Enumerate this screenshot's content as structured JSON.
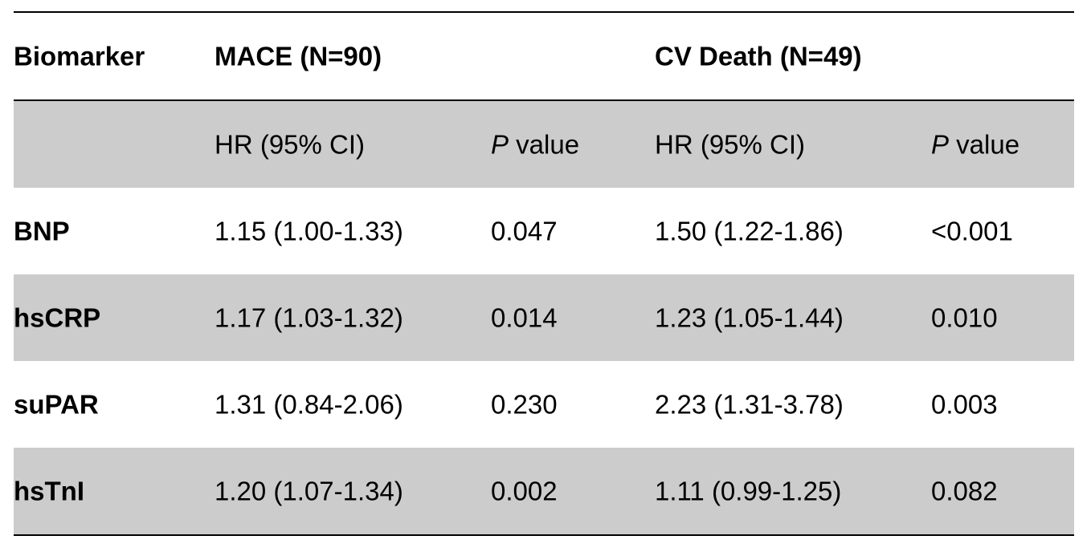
{
  "table": {
    "group_header": {
      "biomarker": "Biomarker",
      "mace": "MACE (N=90)",
      "cv_death": "CV Death (N=49)"
    },
    "sub_header": {
      "mace_hr": "HR (95% CI)",
      "mace_p_italic": "P",
      "mace_p_rest": " value",
      "cv_hr": "HR (95% CI)",
      "cv_p_italic": "P",
      "cv_p_rest": " value"
    },
    "rows": [
      {
        "biomarker": "BNP",
        "mace_hr": "1.15 (1.00-1.33)",
        "mace_p": "0.047",
        "cv_hr": "1.50 (1.22-1.86)",
        "cv_p": "<0.001"
      },
      {
        "biomarker": "hsCRP",
        "mace_hr": "1.17 (1.03-1.32)",
        "mace_p": "0.014",
        "cv_hr": "1.23 (1.05-1.44)",
        "cv_p": "0.010"
      },
      {
        "biomarker": "suPAR",
        "mace_hr": "1.31 (0.84-2.06)",
        "mace_p": "0.230",
        "cv_hr": "2.23 (1.31-3.78)",
        "cv_p": "0.003"
      },
      {
        "biomarker": "hsTnI",
        "mace_hr": "1.20 (1.07-1.34)",
        "mace_p": "0.002",
        "cv_hr": "1.11 (0.99-1.25)",
        "cv_p": "0.082"
      }
    ]
  },
  "colors": {
    "shade": "#cccccc",
    "rule": "#000000"
  }
}
